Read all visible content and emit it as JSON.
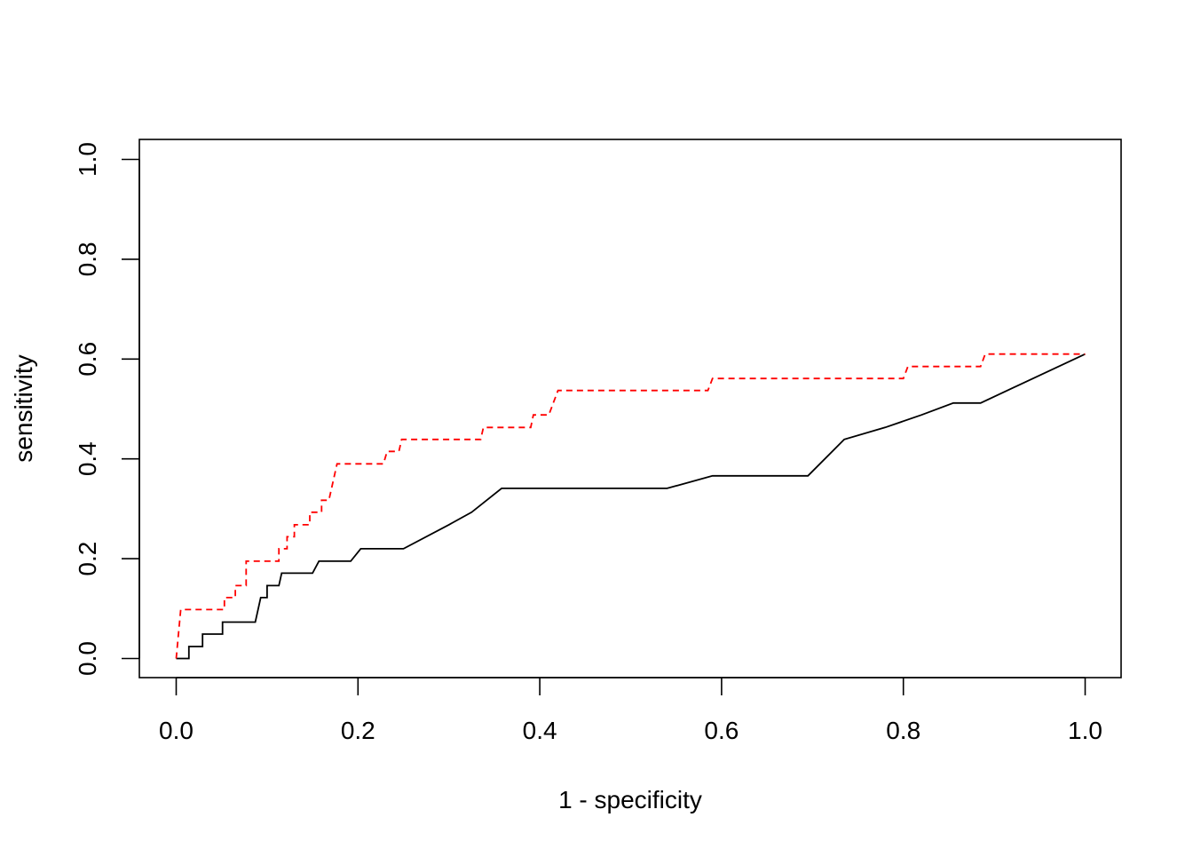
{
  "chart_data": {
    "type": "line",
    "title": "",
    "xlabel": "1 - specificity",
    "ylabel": "sensitivity",
    "xlim": [
      0,
      1
    ],
    "ylim": [
      0,
      1
    ],
    "x_ticks": [
      "0.0",
      "0.2",
      "0.4",
      "0.6",
      "0.8",
      "1.0"
    ],
    "y_ticks": [
      "0.0",
      "0.2",
      "0.4",
      "0.6",
      "0.8",
      "1.0"
    ],
    "grid": false,
    "legend": "none",
    "series": [
      {
        "style": "solid",
        "color": "#000000",
        "points": [
          [
            0.0,
            0.0
          ],
          [
            0.014,
            0.0
          ],
          [
            0.014,
            0.024
          ],
          [
            0.029,
            0.024
          ],
          [
            0.029,
            0.049
          ],
          [
            0.051,
            0.049
          ],
          [
            0.051,
            0.073
          ],
          [
            0.087,
            0.073
          ],
          [
            0.093,
            0.122
          ],
          [
            0.1,
            0.122
          ],
          [
            0.1,
            0.146
          ],
          [
            0.113,
            0.146
          ],
          [
            0.116,
            0.171
          ],
          [
            0.15,
            0.171
          ],
          [
            0.157,
            0.195
          ],
          [
            0.192,
            0.195
          ],
          [
            0.203,
            0.22
          ],
          [
            0.25,
            0.22
          ],
          [
            0.3,
            0.268
          ],
          [
            0.325,
            0.293
          ],
          [
            0.358,
            0.341
          ],
          [
            0.54,
            0.341
          ],
          [
            0.59,
            0.366
          ],
          [
            0.695,
            0.366
          ],
          [
            0.735,
            0.439
          ],
          [
            0.78,
            0.463
          ],
          [
            0.82,
            0.488
          ],
          [
            0.855,
            0.512
          ],
          [
            0.885,
            0.512
          ],
          [
            1.0,
            0.61
          ]
        ]
      },
      {
        "style": "dashed",
        "color": "#ff0000",
        "points": [
          [
            0.0,
            0.0
          ],
          [
            0.005,
            0.098
          ],
          [
            0.053,
            0.098
          ],
          [
            0.053,
            0.122
          ],
          [
            0.065,
            0.122
          ],
          [
            0.065,
            0.146
          ],
          [
            0.077,
            0.146
          ],
          [
            0.077,
            0.195
          ],
          [
            0.113,
            0.195
          ],
          [
            0.113,
            0.22
          ],
          [
            0.122,
            0.22
          ],
          [
            0.122,
            0.244
          ],
          [
            0.13,
            0.244
          ],
          [
            0.13,
            0.268
          ],
          [
            0.147,
            0.268
          ],
          [
            0.147,
            0.293
          ],
          [
            0.16,
            0.293
          ],
          [
            0.16,
            0.317
          ],
          [
            0.168,
            0.317
          ],
          [
            0.177,
            0.39
          ],
          [
            0.228,
            0.39
          ],
          [
            0.232,
            0.415
          ],
          [
            0.245,
            0.415
          ],
          [
            0.248,
            0.439
          ],
          [
            0.335,
            0.439
          ],
          [
            0.338,
            0.463
          ],
          [
            0.39,
            0.463
          ],
          [
            0.393,
            0.488
          ],
          [
            0.41,
            0.488
          ],
          [
            0.42,
            0.537
          ],
          [
            0.585,
            0.537
          ],
          [
            0.59,
            0.561
          ],
          [
            0.8,
            0.561
          ],
          [
            0.805,
            0.585
          ],
          [
            0.885,
            0.585
          ],
          [
            0.89,
            0.61
          ],
          [
            1.0,
            0.61
          ]
        ]
      }
    ]
  }
}
